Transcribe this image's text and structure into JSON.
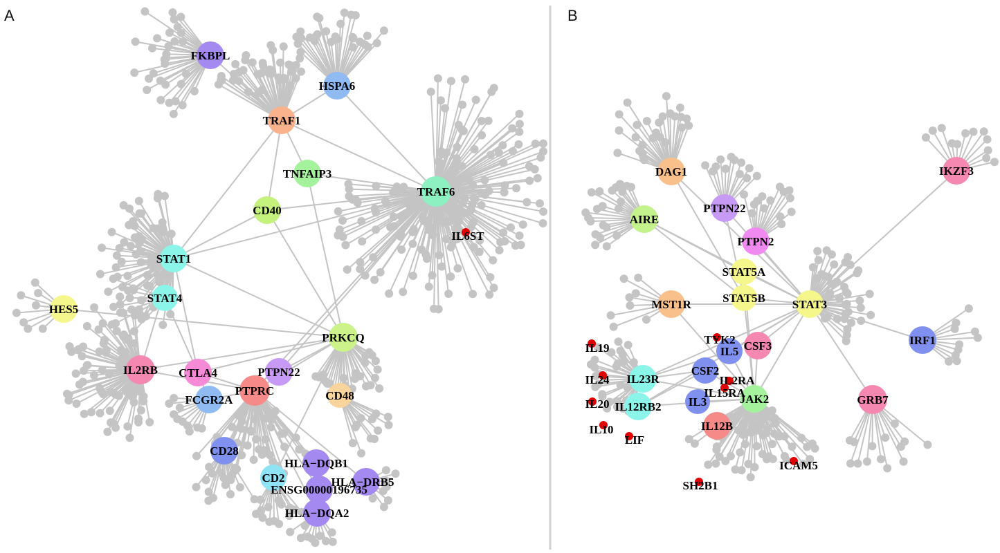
{
  "panels": [
    {
      "letter": "A",
      "hubs": [
        {
          "id": "FKBPL",
          "color": "#a48af0"
        },
        {
          "id": "HSPA6",
          "color": "#8fbaf2"
        },
        {
          "id": "TRAF1",
          "color": "#f9b28c"
        },
        {
          "id": "TNFAIP3",
          "color": "#a4f29c"
        },
        {
          "id": "TRAF6",
          "color": "#8df0c0"
        },
        {
          "id": "CD40",
          "color": "#c4f27c"
        },
        {
          "id": "STAT1",
          "color": "#8cf5ea"
        },
        {
          "id": "STAT4",
          "color": "#8cf5ea"
        },
        {
          "id": "HES5",
          "color": "#f5f68c"
        },
        {
          "id": "PRKCQ",
          "color": "#cbf38a"
        },
        {
          "id": "IL2RB",
          "color": "#f488b0"
        },
        {
          "id": "CTLA4",
          "color": "#f58ad6"
        },
        {
          "id": "PTPN22",
          "color": "#c79af5"
        },
        {
          "id": "PTPRC",
          "color": "#f58a88"
        },
        {
          "id": "FCGR2A",
          "color": "#8fbaf2"
        },
        {
          "id": "CD48",
          "color": "#f9d49c"
        },
        {
          "id": "CD28",
          "color": "#8090ee"
        },
        {
          "id": "CD2",
          "color": "#8ee4f5"
        },
        {
          "id": "HLA−DQB1",
          "color": "#a48af0"
        },
        {
          "id": "HLA−DRB5",
          "color": "#a48af0"
        },
        {
          "id": "ENSG00000196735",
          "color": "#a48af0"
        },
        {
          "id": "HLA−DQA2",
          "color": "#a48af0"
        }
      ],
      "marked_nodes": [
        {
          "id": "IL6ST",
          "color": "#e00000"
        }
      ]
    },
    {
      "letter": "B",
      "hubs": [
        {
          "id": "DAG1",
          "color": "#f9c08c"
        },
        {
          "id": "IKZF3",
          "color": "#f488b0"
        },
        {
          "id": "PTPN22",
          "color": "#c79af5"
        },
        {
          "id": "AIRE",
          "color": "#c4f28c"
        },
        {
          "id": "PTPN2",
          "color": "#f08af0"
        },
        {
          "id": "STAT5A",
          "color": "#f5f68c"
        },
        {
          "id": "STAT5B",
          "color": "#f5f68c"
        },
        {
          "id": "MST1R",
          "color": "#f9c08c"
        },
        {
          "id": "STAT3",
          "color": "#f5f68c"
        },
        {
          "id": "IRF1",
          "color": "#8090ee"
        },
        {
          "id": "IL5",
          "color": "#8090ee"
        },
        {
          "id": "CSF3",
          "color": "#f488b0"
        },
        {
          "id": "CSF2",
          "color": "#8090ee"
        },
        {
          "id": "IL23R",
          "color": "#8cf5ea"
        },
        {
          "id": "IL12RB2",
          "color": "#8cf5ea"
        },
        {
          "id": "IL3",
          "color": "#8090ee"
        },
        {
          "id": "JAK2",
          "color": "#a4f29c"
        },
        {
          "id": "IL12B",
          "color": "#f58a88"
        },
        {
          "id": "GRB7",
          "color": "#f488b0"
        }
      ],
      "marked_nodes": [
        {
          "id": "TYK2",
          "color": "#e00000"
        },
        {
          "id": "IL19",
          "color": "#e00000"
        },
        {
          "id": "IL24",
          "color": "#e00000"
        },
        {
          "id": "IL20",
          "color": "#e00000"
        },
        {
          "id": "IL10",
          "color": "#e00000"
        },
        {
          "id": "LIF",
          "color": "#e00000"
        },
        {
          "id": "IL2RA",
          "color": "#e00000"
        },
        {
          "id": "IL15RA",
          "color": "#e00000"
        },
        {
          "id": "ICAM5",
          "color": "#e00000"
        },
        {
          "id": "SH2B1",
          "color": "#e00000"
        }
      ]
    }
  ],
  "edge_color": "#c4c4c4",
  "leaf_color": "#c4c4c4"
}
